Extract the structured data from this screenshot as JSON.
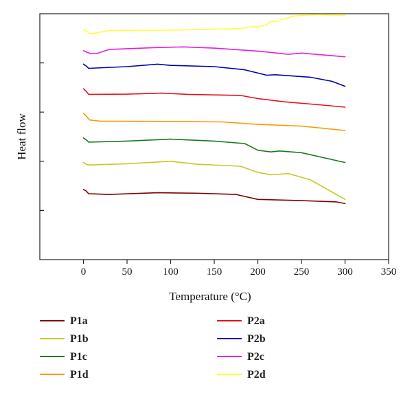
{
  "chart_data": {
    "type": "line",
    "xlabel": "Temperature (°C)",
    "ylabel": "Heat flow",
    "xlim": [
      -50,
      350
    ],
    "ylim": [
      0,
      10
    ],
    "xticks": [
      0,
      50,
      100,
      150,
      200,
      250,
      300,
      350
    ],
    "yticks": [
      2,
      4,
      6,
      8
    ],
    "grid": false,
    "legend_position": "bottom",
    "series": [
      {
        "name": "P1a",
        "color": "#800000",
        "points": [
          [
            0,
            2.85
          ],
          [
            3,
            2.8
          ],
          [
            6,
            2.68
          ],
          [
            30,
            2.65
          ],
          [
            85,
            2.72
          ],
          [
            130,
            2.7
          ],
          [
            175,
            2.65
          ],
          [
            200,
            2.45
          ],
          [
            250,
            2.4
          ],
          [
            290,
            2.35
          ],
          [
            300,
            2.28
          ]
        ]
      },
      {
        "name": "P1b",
        "color": "#c8c820",
        "points": [
          [
            0,
            3.95
          ],
          [
            3,
            3.88
          ],
          [
            6,
            3.85
          ],
          [
            50,
            3.9
          ],
          [
            100,
            4.0
          ],
          [
            130,
            3.88
          ],
          [
            180,
            3.8
          ],
          [
            200,
            3.55
          ],
          [
            215,
            3.45
          ],
          [
            235,
            3.5
          ],
          [
            260,
            3.25
          ],
          [
            300,
            2.45
          ]
        ]
      },
      {
        "name": "P1c",
        "color": "#1a7a1a",
        "points": [
          [
            0,
            4.95
          ],
          [
            3,
            4.88
          ],
          [
            6,
            4.78
          ],
          [
            50,
            4.82
          ],
          [
            100,
            4.9
          ],
          [
            150,
            4.82
          ],
          [
            185,
            4.72
          ],
          [
            200,
            4.45
          ],
          [
            215,
            4.38
          ],
          [
            225,
            4.42
          ],
          [
            250,
            4.35
          ],
          [
            300,
            3.95
          ]
        ]
      },
      {
        "name": "P1d",
        "color": "#ff9900",
        "points": [
          [
            0,
            5.95
          ],
          [
            3,
            5.85
          ],
          [
            7,
            5.68
          ],
          [
            20,
            5.63
          ],
          [
            100,
            5.62
          ],
          [
            160,
            5.6
          ],
          [
            200,
            5.5
          ],
          [
            250,
            5.43
          ],
          [
            300,
            5.25
          ]
        ]
      },
      {
        "name": "P2a",
        "color": "#e8101a",
        "points": [
          [
            0,
            6.95
          ],
          [
            3,
            6.85
          ],
          [
            6,
            6.72
          ],
          [
            50,
            6.73
          ],
          [
            90,
            6.77
          ],
          [
            120,
            6.72
          ],
          [
            180,
            6.68
          ],
          [
            200,
            6.55
          ],
          [
            230,
            6.42
          ],
          [
            270,
            6.3
          ],
          [
            300,
            6.2
          ]
        ]
      },
      {
        "name": "P2b",
        "color": "#0000b0",
        "points": [
          [
            0,
            7.95
          ],
          [
            3,
            7.88
          ],
          [
            6,
            7.78
          ],
          [
            50,
            7.85
          ],
          [
            85,
            7.95
          ],
          [
            100,
            7.9
          ],
          [
            150,
            7.85
          ],
          [
            185,
            7.72
          ],
          [
            210,
            7.5
          ],
          [
            220,
            7.52
          ],
          [
            260,
            7.42
          ],
          [
            285,
            7.25
          ],
          [
            300,
            7.05
          ]
        ]
      },
      {
        "name": "P2c",
        "color": "#e81ae8",
        "points": [
          [
            0,
            8.5
          ],
          [
            3,
            8.45
          ],
          [
            8,
            8.38
          ],
          [
            15,
            8.38
          ],
          [
            30,
            8.55
          ],
          [
            80,
            8.62
          ],
          [
            115,
            8.65
          ],
          [
            150,
            8.6
          ],
          [
            200,
            8.48
          ],
          [
            235,
            8.35
          ],
          [
            250,
            8.4
          ],
          [
            300,
            8.25
          ]
        ]
      },
      {
        "name": "P2d",
        "color": "#ffff33",
        "points": [
          [
            0,
            9.35
          ],
          [
            3,
            9.3
          ],
          [
            8,
            9.18
          ],
          [
            15,
            9.22
          ],
          [
            30,
            9.32
          ],
          [
            100,
            9.33
          ],
          [
            180,
            9.4
          ],
          [
            190,
            9.45
          ],
          [
            205,
            9.5
          ],
          [
            210,
            9.55
          ],
          [
            215,
            9.7
          ],
          [
            220,
            9.68
          ],
          [
            240,
            9.9
          ],
          [
            250,
            9.93
          ],
          [
            270,
            9.96
          ],
          [
            300,
            9.93
          ]
        ]
      }
    ]
  }
}
